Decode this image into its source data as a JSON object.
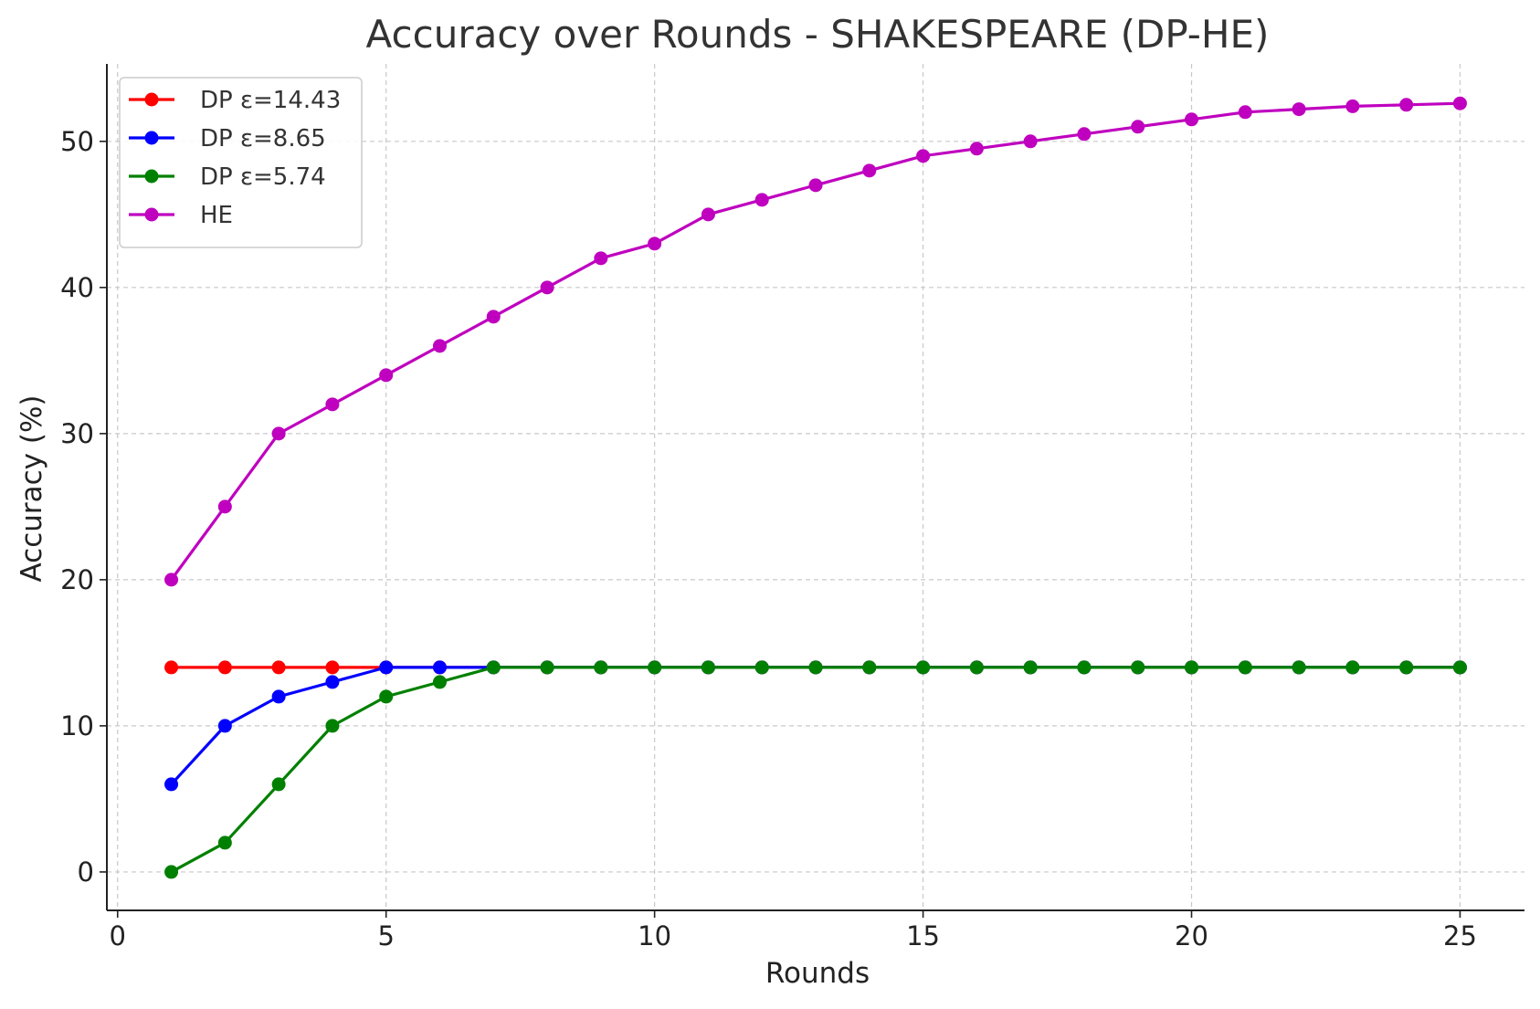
{
  "chart_data": {
    "type": "line",
    "title": "Accuracy over Rounds - SHAKESPEARE (DP-HE)",
    "xlabel": "Rounds",
    "ylabel": "Accuracy (%)",
    "xlim": [
      -0.2,
      26.2
    ],
    "ylim": [
      -2.63,
      55.3
    ],
    "xticks": [
      0,
      5,
      10,
      15,
      20,
      25
    ],
    "yticks": [
      0,
      10,
      20,
      30,
      40,
      50
    ],
    "grid": true,
    "legend_position": "upper-left",
    "x": [
      1,
      2,
      3,
      4,
      5,
      6,
      7,
      8,
      9,
      10,
      11,
      12,
      13,
      14,
      15,
      16,
      17,
      18,
      19,
      20,
      21,
      22,
      23,
      24,
      25
    ],
    "series": [
      {
        "name": "DP ε=14.43",
        "color": "#ff0000",
        "values": [
          14,
          14,
          14,
          14,
          14,
          14,
          14,
          14,
          14,
          14,
          14,
          14,
          14,
          14,
          14,
          14,
          14,
          14,
          14,
          14,
          14,
          14,
          14,
          14,
          14
        ]
      },
      {
        "name": "DP ε=8.65",
        "color": "#0000ff",
        "values": [
          6,
          10,
          12,
          13,
          14,
          14,
          14,
          14,
          14,
          14,
          14,
          14,
          14,
          14,
          14,
          14,
          14,
          14,
          14,
          14,
          14,
          14,
          14,
          14,
          14
        ]
      },
      {
        "name": "DP ε=5.74",
        "color": "#008000",
        "values": [
          0,
          2,
          6,
          10,
          12,
          13,
          14,
          14,
          14,
          14,
          14,
          14,
          14,
          14,
          14,
          14,
          14,
          14,
          14,
          14,
          14,
          14,
          14,
          14,
          14
        ]
      },
      {
        "name": "HE",
        "color": "#bf00bf",
        "values": [
          20,
          25,
          30,
          32,
          34,
          36,
          38,
          40,
          42,
          43,
          45,
          46,
          47,
          48,
          49,
          49.5,
          50,
          50.5,
          51,
          51.5,
          52,
          52.2,
          52.4,
          52.5,
          52.6
        ]
      }
    ]
  }
}
